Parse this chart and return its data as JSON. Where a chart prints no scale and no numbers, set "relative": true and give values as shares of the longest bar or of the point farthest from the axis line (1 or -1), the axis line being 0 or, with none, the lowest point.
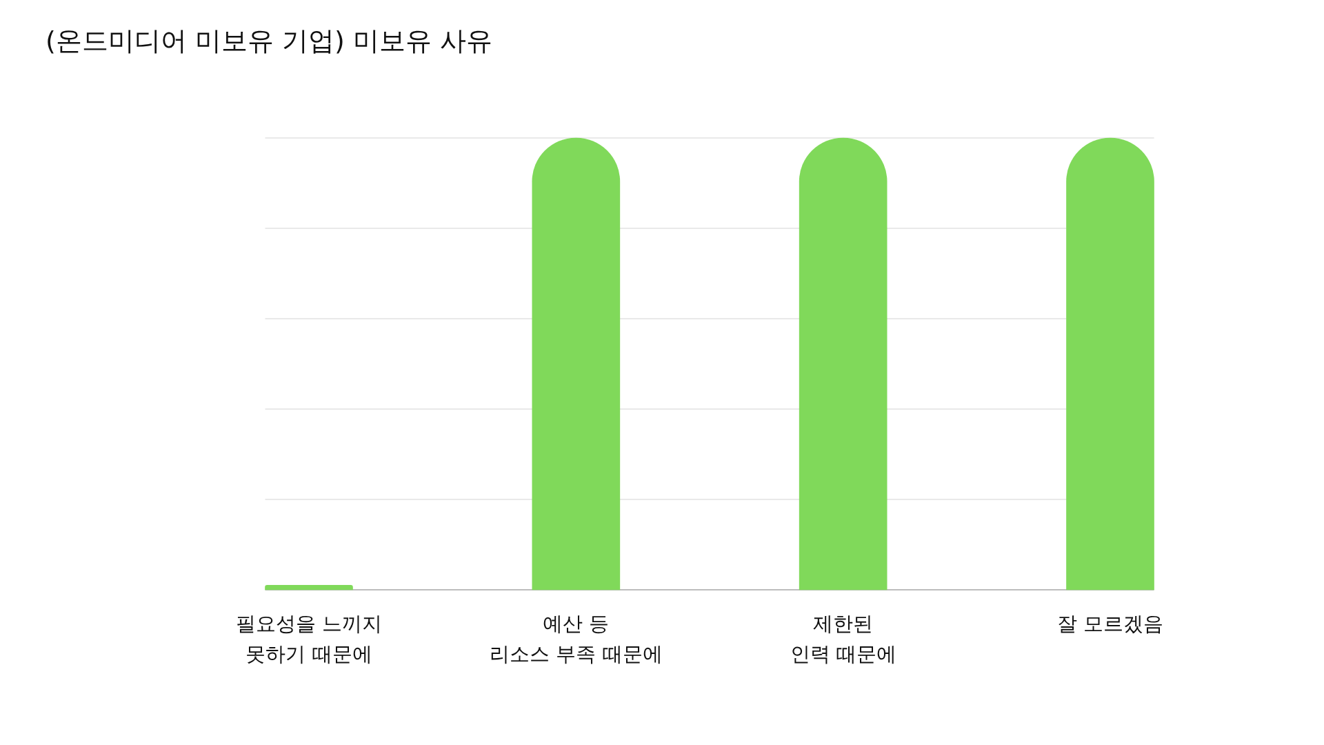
{
  "chart_data": {
    "type": "bar",
    "title": "(온드미디어 미보유 기업) 미보유 사유",
    "categories": [
      "필요성을 느끼지\n못하기 때문에",
      "예산 등\n리소스 부족 때문에",
      "제한된\n인력 때문에",
      "잘 모르겠음"
    ],
    "values": [
      0.01,
      1,
      1,
      1
    ],
    "color": "#80d95a",
    "relative": true,
    "grid": "y"
  }
}
